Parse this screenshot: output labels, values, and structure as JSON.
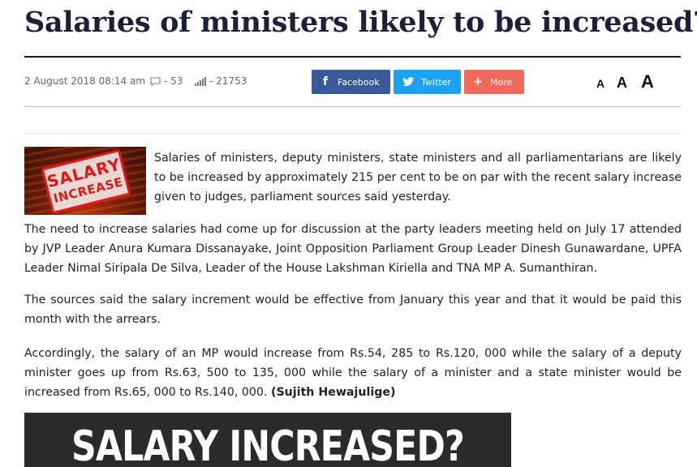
{
  "article": {
    "title": "Salaries of ministers likely to be increased?",
    "date": "2 August 2018 08:14 am",
    "comments": "- 53",
    "views": "- 21753",
    "paragraphs": [
      "Salaries of ministers, deputy ministers, state ministers and all parliamentarians are likely to be increased by approximately 215 per cent to be on par with the recent salary increase given to judges, parliament sources said yesterday.",
      "The need to increase salaries had come up for discussion at the party leaders meeting held on July 17 attended by JVP Leader Anura Kumara Dissanayake, Joint Opposition Parliament Group Leader Dinesh Gunawardane, UPFA Leader Nimal Siripala De Silva, Leader of the House Lakshman Kiriella and TNA MP A. Sumanthiran.",
      "The sources said the salary increment would be effective from January this year and that it would be paid this month with the arrears.",
      "Accordingly, the salary of an MP would increase from Rs.54, 285 to Rs.120, 000 while the salary of a deputy minister goes up from Rs.63, 500 to 135, 000 while the salary of a minister and a state minister would be increased from Rs.65, 000 to Rs.140, 000. "
    ],
    "byline": "(Sujith Hewajulige)",
    "thumbnail_stamp": [
      "SALARY",
      "INCREASE"
    ],
    "banner_text": "SALARY INCREASED?"
  },
  "share": {
    "facebook": "Facebook",
    "twitter": "Twitter",
    "more": "More",
    "colors": {
      "facebook": "#3b5998",
      "twitter": "#1da1f2",
      "more": "#f2685b"
    }
  },
  "font_controls": {
    "small": "A",
    "medium": "A",
    "large": "A"
  },
  "icons": {
    "comments": "comment-icon",
    "views": "signal-bars-icon",
    "facebook": "facebook-icon",
    "twitter": "twitter-icon",
    "more": "plus-icon"
  }
}
